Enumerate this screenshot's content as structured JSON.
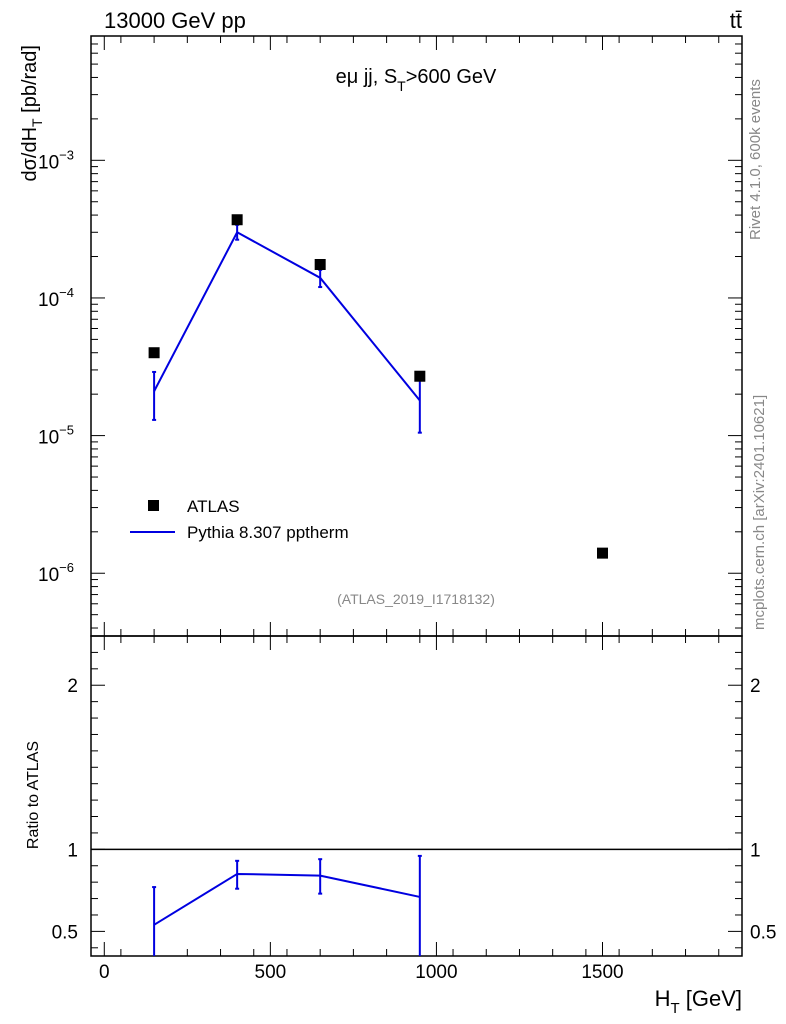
{
  "header": {
    "energy_label": "13000 GeV pp",
    "process_label": "tt̄"
  },
  "side_labels": {
    "rivet": "Rivet 4.1.0,  600k events",
    "mcplots": "mcplots.cern.ch [arXiv:2401.10621]"
  },
  "chart_data": [
    {
      "type": "scatter",
      "panel": "main",
      "title_main": "eμ jj, S",
      "title_sub": "T",
      "title_tail": ">600 GeV",
      "ylabel_main": "dσ/dH",
      "ylabel_sub": "T",
      "ylabel_tail": " [pb/rad]",
      "yscale": "log",
      "ylim": [
        3.5e-07,
        0.008
      ],
      "xlim": [
        -40,
        1920
      ],
      "ytick_exponents": [
        -3,
        -4,
        -5,
        -6
      ],
      "xticks": [
        0,
        500,
        1000,
        1500
      ],
      "analysis_label": "(ATLAS_2019_I1718132)",
      "legend": {
        "position": "lower-left",
        "entries": [
          "ATLAS",
          "Pythia 8.307 pptherm"
        ]
      },
      "series": [
        {
          "name": "ATLAS",
          "style": "marker",
          "color": "#000000",
          "x": [
            150,
            400,
            650,
            950,
            1500
          ],
          "y": [
            4e-05,
            0.00037,
            0.000175,
            2.7e-05,
            1.4e-06
          ]
        },
        {
          "name": "Pythia 8.307 pptherm",
          "style": "line",
          "color": "#0000e0",
          "x": [
            150,
            400,
            650,
            950
          ],
          "y": [
            2.1e-05,
            0.0003,
            0.00014,
            1.8e-05
          ],
          "err_low": [
            1.3e-05,
            0.000265,
            0.00012,
            1.05e-05
          ],
          "err_high": [
            2.9e-05,
            0.00034,
            0.00016,
            2.6e-05
          ]
        }
      ]
    },
    {
      "type": "line",
      "panel": "ratio",
      "ylabel": "Ratio to ATLAS",
      "xlabel_main": "H",
      "xlabel_sub": "T",
      "xlabel_tail": " [GeV]",
      "ylim": [
        0.35,
        2.3
      ],
      "xlim": [
        -40,
        1920
      ],
      "yticks": [
        0.5,
        1,
        2
      ],
      "ytick_labels": [
        "0.5",
        "1",
        "2"
      ],
      "xticks": [
        0,
        500,
        1000,
        1500
      ],
      "xtick_labels": [
        "0",
        "500",
        "1000",
        "1500"
      ],
      "reference": 1,
      "series": [
        {
          "name": "Pythia 8.307 pptherm",
          "color": "#0000e0",
          "x": [
            150,
            400,
            650,
            950
          ],
          "y": [
            0.54,
            0.85,
            0.84,
            0.71
          ],
          "err_low": [
            0.3,
            0.76,
            0.73,
            0.3
          ],
          "err_high": [
            0.77,
            0.93,
            0.94,
            0.96
          ]
        }
      ]
    }
  ]
}
